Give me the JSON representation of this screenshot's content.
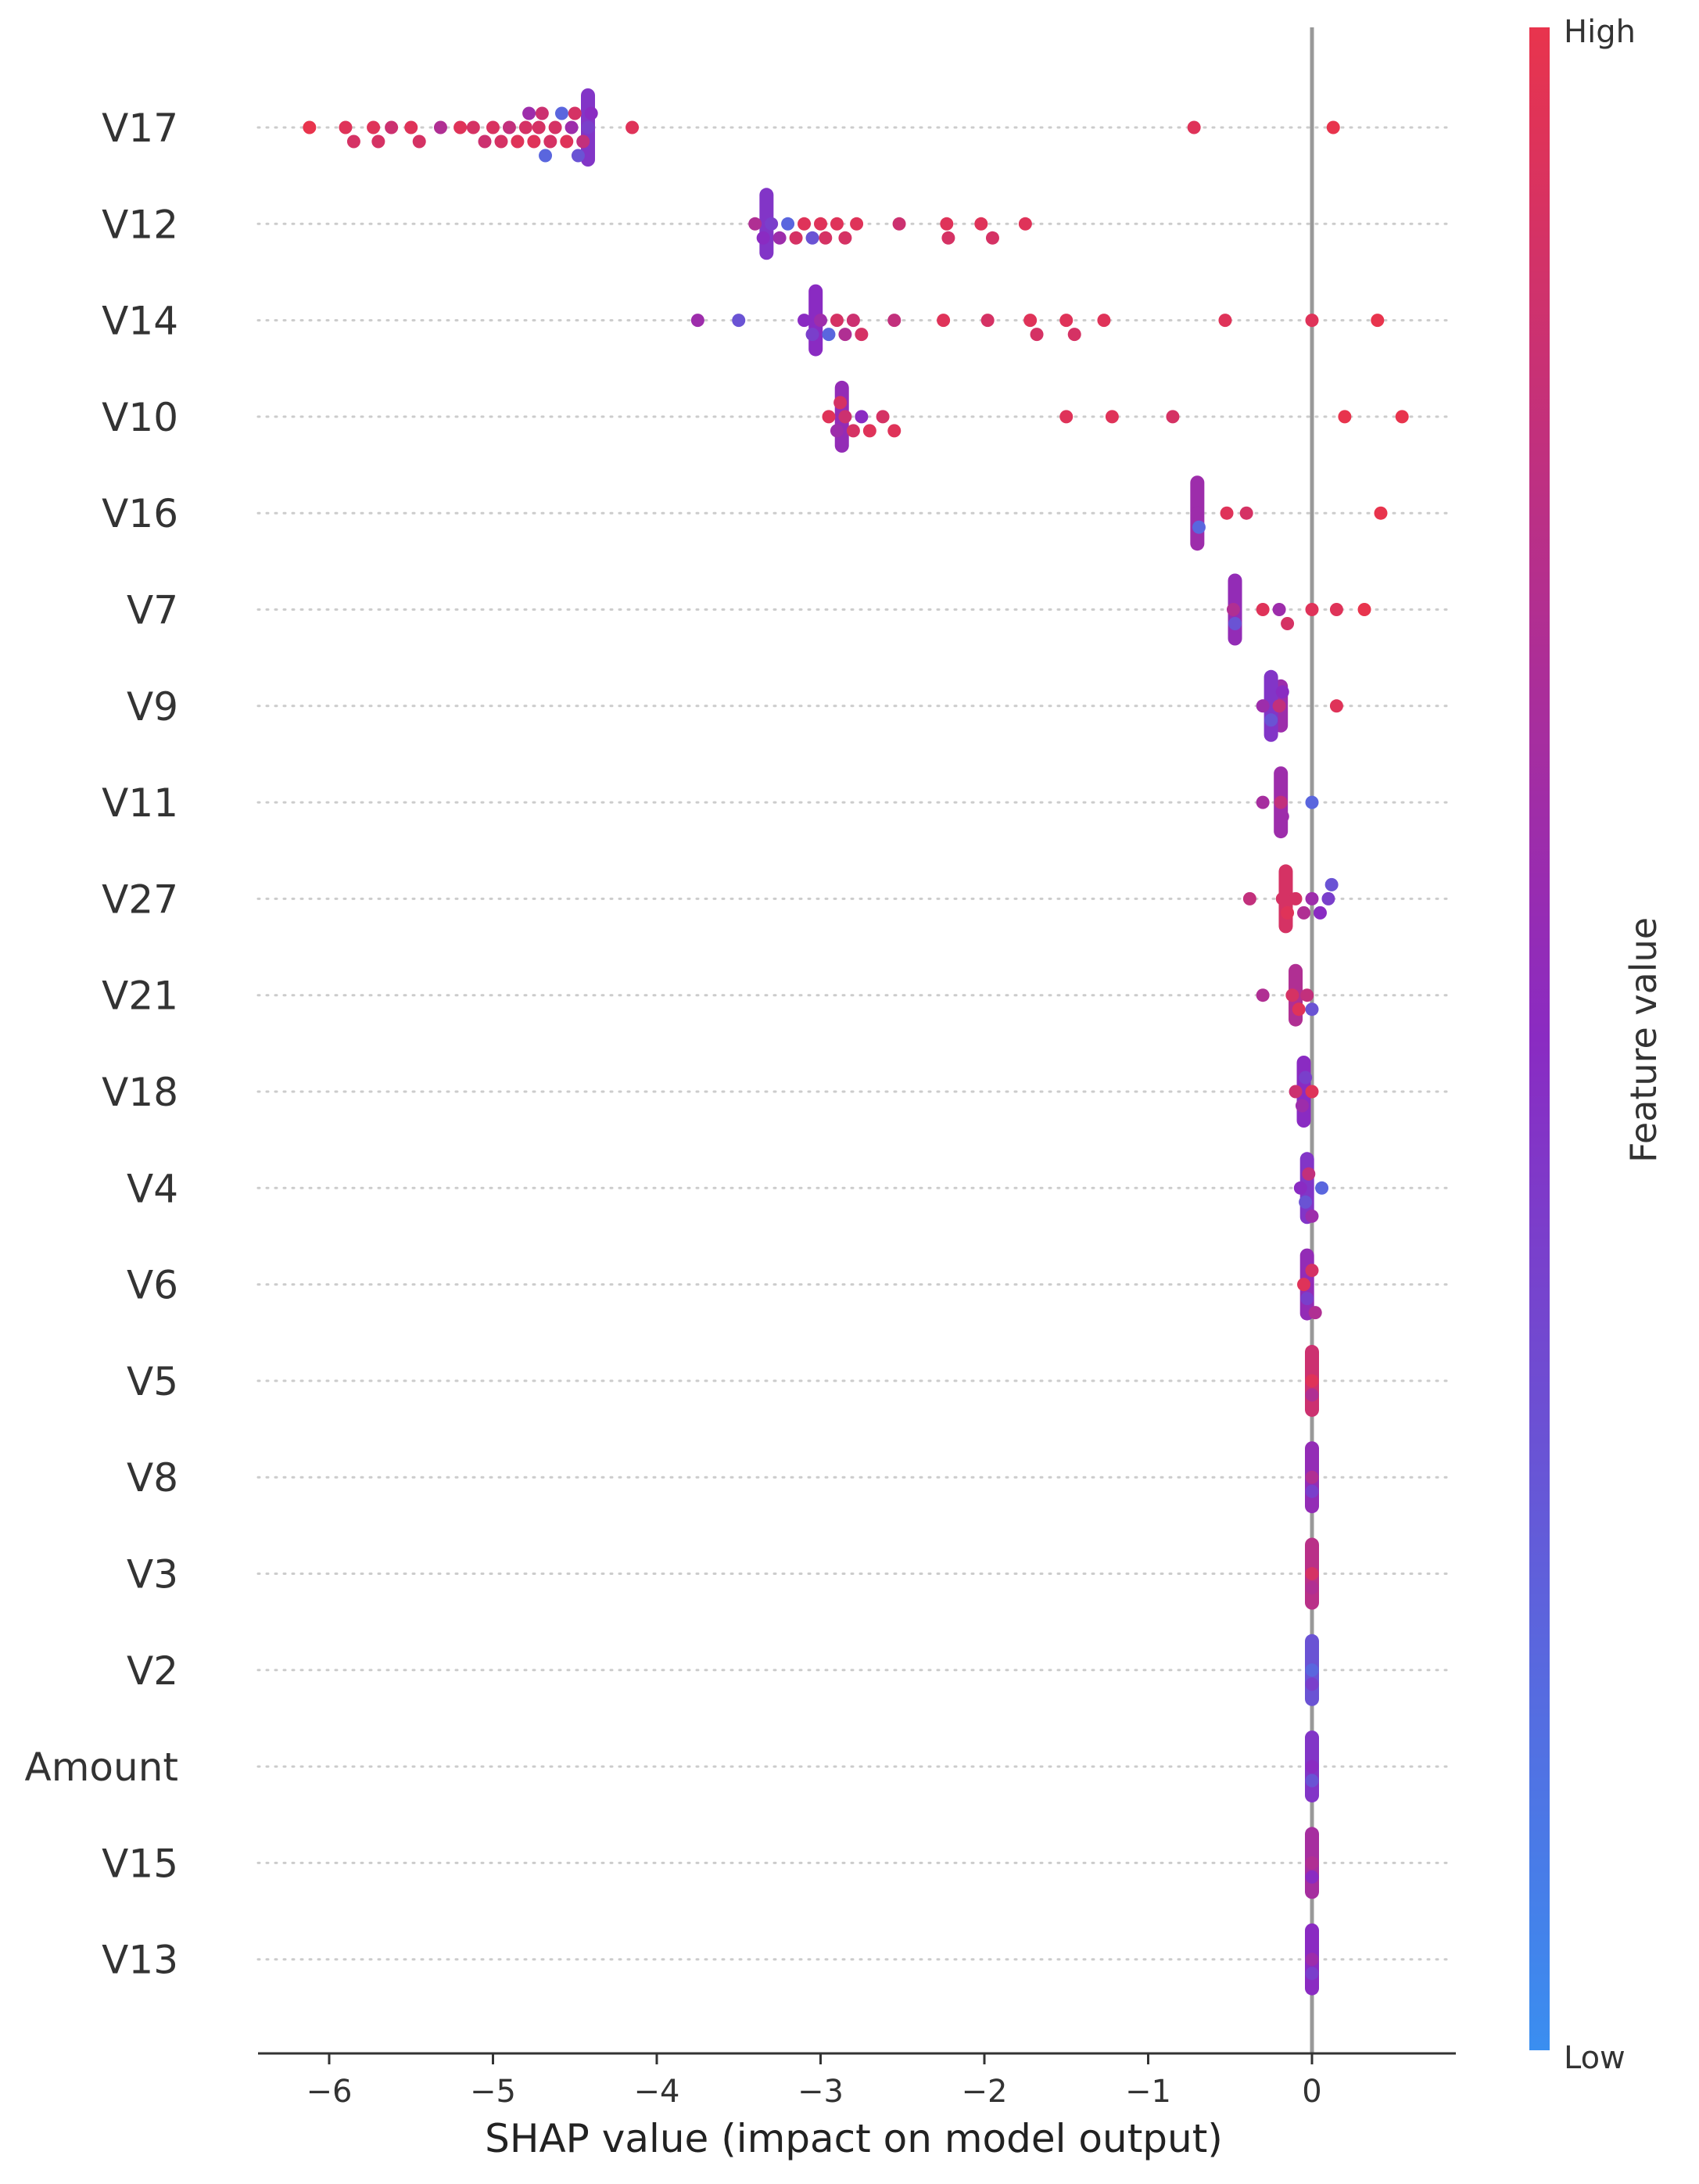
{
  "chart_data": {
    "type": "scatter",
    "subtype": "shap-beeswarm-summary",
    "xlabel": "SHAP value (impact on model output)",
    "xlim": [
      -6.45,
      0.9
    ],
    "xticks": [
      -6,
      -5,
      -4,
      -3,
      -2,
      -1,
      0
    ],
    "xtick_labels": [
      "−6",
      "−5",
      "−4",
      "−3",
      "−2",
      "−1",
      "0"
    ],
    "features": [
      {
        "name": "V17",
        "points": [
          {
            "x": -6.12,
            "v": 1.0
          },
          {
            "x": -5.9,
            "v": 0.95
          },
          {
            "x": -5.85,
            "v": 0.9
          },
          {
            "x": -5.73,
            "v": 0.95
          },
          {
            "x": -5.7,
            "v": 0.9
          },
          {
            "x": -5.62,
            "v": 0.85
          },
          {
            "x": -5.5,
            "v": 0.95
          },
          {
            "x": -5.45,
            "v": 0.9
          },
          {
            "x": -5.32,
            "v": 0.7
          },
          {
            "x": -5.2,
            "v": 0.95
          },
          {
            "x": -5.12,
            "v": 0.9
          },
          {
            "x": -5.05,
            "v": 0.85
          },
          {
            "x": -5.0,
            "v": 0.92
          },
          {
            "x": -4.95,
            "v": 0.9
          },
          {
            "x": -4.9,
            "v": 0.8
          },
          {
            "x": -4.85,
            "v": 0.95
          },
          {
            "x": -4.8,
            "v": 0.9
          },
          {
            "x": -4.78,
            "v": 0.6
          },
          {
            "x": -4.75,
            "v": 0.95
          },
          {
            "x": -4.72,
            "v": 0.9
          },
          {
            "x": -4.7,
            "v": 0.85
          },
          {
            "x": -4.68,
            "v": 0.2
          },
          {
            "x": -4.65,
            "v": 0.9
          },
          {
            "x": -4.62,
            "v": 0.9
          },
          {
            "x": -4.58,
            "v": 0.2
          },
          {
            "x": -4.55,
            "v": 0.95
          },
          {
            "x": -4.52,
            "v": 0.6
          },
          {
            "x": -4.5,
            "v": 0.9
          },
          {
            "x": -4.48,
            "v": 0.3
          },
          {
            "x": -4.45,
            "v": 0.8
          },
          {
            "x": -4.42,
            "v": 0.4
          },
          {
            "x": -4.4,
            "v": 0.5
          },
          {
            "x": -4.15,
            "v": 0.95
          },
          {
            "x": -0.72,
            "v": 0.95
          },
          {
            "x": 0.13,
            "v": 1.0
          }
        ]
      },
      {
        "name": "V12",
        "points": [
          {
            "x": -3.4,
            "v": 0.7
          },
          {
            "x": -3.35,
            "v": 0.5
          },
          {
            "x": -3.3,
            "v": 0.4
          },
          {
            "x": -3.25,
            "v": 0.6
          },
          {
            "x": -3.2,
            "v": 0.2
          },
          {
            "x": -3.15,
            "v": 0.9
          },
          {
            "x": -3.1,
            "v": 0.95
          },
          {
            "x": -3.05,
            "v": 0.3
          },
          {
            "x": -3.0,
            "v": 0.95
          },
          {
            "x": -2.97,
            "v": 0.9
          },
          {
            "x": -2.9,
            "v": 0.95
          },
          {
            "x": -2.85,
            "v": 0.9
          },
          {
            "x": -2.78,
            "v": 0.95
          },
          {
            "x": -2.52,
            "v": 0.85
          },
          {
            "x": -2.23,
            "v": 0.95
          },
          {
            "x": -2.22,
            "v": 0.9
          },
          {
            "x": -2.02,
            "v": 0.95
          },
          {
            "x": -1.95,
            "v": 0.9
          },
          {
            "x": -1.75,
            "v": 0.95
          }
        ]
      },
      {
        "name": "V14",
        "points": [
          {
            "x": -3.75,
            "v": 0.6
          },
          {
            "x": -3.5,
            "v": 0.3
          },
          {
            "x": -3.1,
            "v": 0.5
          },
          {
            "x": -3.05,
            "v": 0.4
          },
          {
            "x": -3.0,
            "v": 0.6
          },
          {
            "x": -2.95,
            "v": 0.2
          },
          {
            "x": -2.9,
            "v": 0.9
          },
          {
            "x": -2.85,
            "v": 0.7
          },
          {
            "x": -2.8,
            "v": 0.85
          },
          {
            "x": -2.75,
            "v": 0.9
          },
          {
            "x": -2.55,
            "v": 0.8
          },
          {
            "x": -2.25,
            "v": 0.95
          },
          {
            "x": -1.98,
            "v": 0.9
          },
          {
            "x": -1.72,
            "v": 0.95
          },
          {
            "x": -1.68,
            "v": 0.9
          },
          {
            "x": -1.5,
            "v": 0.95
          },
          {
            "x": -1.45,
            "v": 0.9
          },
          {
            "x": -1.27,
            "v": 0.95
          },
          {
            "x": -0.53,
            "v": 0.95
          },
          {
            "x": 0.0,
            "v": 0.95
          },
          {
            "x": 0.4,
            "v": 1.0
          }
        ]
      },
      {
        "name": "V10",
        "points": [
          {
            "x": -2.95,
            "v": 0.95
          },
          {
            "x": -2.9,
            "v": 0.6
          },
          {
            "x": -2.88,
            "v": 0.9
          },
          {
            "x": -2.85,
            "v": 0.85
          },
          {
            "x": -2.8,
            "v": 0.9
          },
          {
            "x": -2.75,
            "v": 0.5
          },
          {
            "x": -2.7,
            "v": 0.95
          },
          {
            "x": -2.62,
            "v": 0.9
          },
          {
            "x": -2.55,
            "v": 0.95
          },
          {
            "x": -1.5,
            "v": 0.95
          },
          {
            "x": -1.22,
            "v": 0.95
          },
          {
            "x": -0.85,
            "v": 0.9
          },
          {
            "x": 0.2,
            "v": 1.0
          },
          {
            "x": 0.55,
            "v": 1.0
          }
        ]
      },
      {
        "name": "V16",
        "points": [
          {
            "x": -0.7,
            "v": 0.6
          },
          {
            "x": -0.69,
            "v": 0.2
          },
          {
            "x": -0.52,
            "v": 0.95
          },
          {
            "x": -0.4,
            "v": 0.9
          },
          {
            "x": 0.42,
            "v": 1.0
          }
        ]
      },
      {
        "name": "V7",
        "points": [
          {
            "x": -0.48,
            "v": 0.7
          },
          {
            "x": -0.47,
            "v": 0.3
          },
          {
            "x": -0.3,
            "v": 0.95
          },
          {
            "x": -0.2,
            "v": 0.6
          },
          {
            "x": -0.15,
            "v": 0.9
          },
          {
            "x": 0.0,
            "v": 0.95
          },
          {
            "x": 0.15,
            "v": 0.95
          },
          {
            "x": 0.32,
            "v": 1.0
          }
        ]
      },
      {
        "name": "V9",
        "points": [
          {
            "x": -0.3,
            "v": 0.6
          },
          {
            "x": -0.25,
            "v": 0.3
          },
          {
            "x": -0.2,
            "v": 0.8
          },
          {
            "x": -0.18,
            "v": 0.5
          },
          {
            "x": 0.15,
            "v": 0.95
          }
        ]
      },
      {
        "name": "V11",
        "points": [
          {
            "x": -0.3,
            "v": 0.65
          },
          {
            "x": -0.19,
            "v": 0.8
          },
          {
            "x": -0.18,
            "v": 0.6
          },
          {
            "x": 0.0,
            "v": 0.2
          }
        ]
      },
      {
        "name": "V27",
        "points": [
          {
            "x": -0.38,
            "v": 0.8
          },
          {
            "x": -0.18,
            "v": 0.9
          },
          {
            "x": -0.15,
            "v": 0.95
          },
          {
            "x": -0.1,
            "v": 0.9
          },
          {
            "x": -0.05,
            "v": 0.7
          },
          {
            "x": 0.0,
            "v": 0.6
          },
          {
            "x": 0.05,
            "v": 0.5
          },
          {
            "x": 0.1,
            "v": 0.4
          },
          {
            "x": 0.12,
            "v": 0.3
          }
        ]
      },
      {
        "name": "V21",
        "points": [
          {
            "x": -0.3,
            "v": 0.7
          },
          {
            "x": -0.12,
            "v": 0.9
          },
          {
            "x": -0.08,
            "v": 0.95
          },
          {
            "x": -0.03,
            "v": 0.8
          },
          {
            "x": 0.0,
            "v": 0.3
          }
        ]
      },
      {
        "name": "V18",
        "points": [
          {
            "x": -0.1,
            "v": 0.85
          },
          {
            "x": -0.06,
            "v": 0.6
          },
          {
            "x": -0.04,
            "v": 0.4
          },
          {
            "x": 0.0,
            "v": 0.95
          }
        ]
      },
      {
        "name": "V4",
        "points": [
          {
            "x": -0.07,
            "v": 0.5
          },
          {
            "x": -0.04,
            "v": 0.3
          },
          {
            "x": -0.02,
            "v": 0.8
          },
          {
            "x": 0.0,
            "v": 0.6
          },
          {
            "x": 0.06,
            "v": 0.2
          }
        ]
      },
      {
        "name": "V6",
        "points": [
          {
            "x": -0.05,
            "v": 0.95
          },
          {
            "x": -0.03,
            "v": 0.4
          },
          {
            "x": 0.0,
            "v": 0.9
          },
          {
            "x": 0.02,
            "v": 0.7
          }
        ]
      },
      {
        "name": "V5",
        "points": [
          {
            "x": 0.0,
            "v": 0.95
          },
          {
            "x": 0.0,
            "v": 0.7
          }
        ]
      },
      {
        "name": "V8",
        "points": [
          {
            "x": 0.0,
            "v": 0.7
          },
          {
            "x": 0.0,
            "v": 0.4
          }
        ]
      },
      {
        "name": "V3",
        "points": [
          {
            "x": 0.0,
            "v": 0.9
          },
          {
            "x": 0.0,
            "v": 0.7
          }
        ]
      },
      {
        "name": "V2",
        "points": [
          {
            "x": 0.0,
            "v": 0.2
          },
          {
            "x": 0.0,
            "v": 0.4
          }
        ]
      },
      {
        "name": "Amount",
        "points": [
          {
            "x": 0.0,
            "v": 0.5
          },
          {
            "x": 0.0,
            "v": 0.3
          }
        ]
      },
      {
        "name": "V15",
        "points": [
          {
            "x": 0.0,
            "v": 0.7
          },
          {
            "x": 0.0,
            "v": 0.5
          }
        ]
      },
      {
        "name": "V13",
        "points": [
          {
            "x": 0.0,
            "v": 0.6
          },
          {
            "x": 0.0,
            "v": 0.4
          }
        ]
      }
    ],
    "colorbar": {
      "title": "Feature value",
      "high_label": "High",
      "low_label": "Low",
      "low_color": "#3a8ef0",
      "mid_color": "#8a2bc2",
      "high_color": "#e8344d"
    }
  }
}
